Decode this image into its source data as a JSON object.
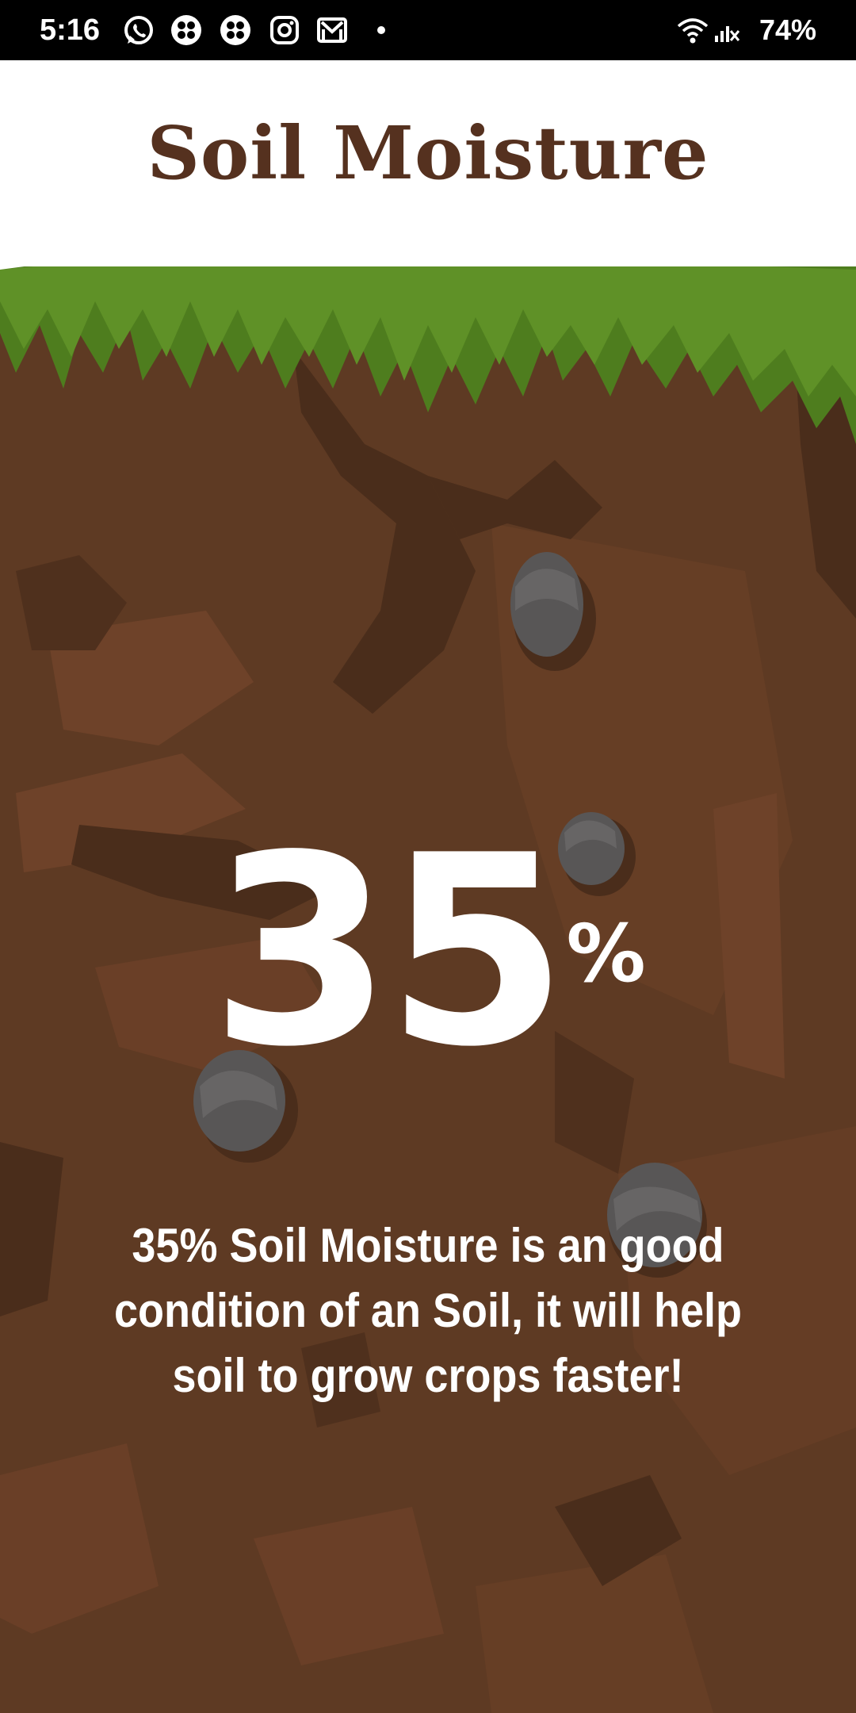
{
  "status_bar": {
    "time": "5:16",
    "battery": "74%",
    "icons": [
      "whatsapp-icon",
      "clover-app-icon",
      "clover-app-icon",
      "instagram-icon",
      "gmail-icon",
      "notification-dot-icon",
      "wifi-icon",
      "no-signal-icon"
    ]
  },
  "header": {
    "title": "Soil Moisture"
  },
  "moisture": {
    "value": "35",
    "unit": "%",
    "message": "35% Soil Moisture is an good condition of an Soil, it will help soil to grow crops faster!"
  },
  "colors": {
    "title": "#55311f",
    "grass": "#4e7d1e",
    "grass_light": "#5f9127",
    "soil": "#5e3a23",
    "soil_dark": "#4a2d1b",
    "soil_light": "#6e4229",
    "rock": "#585656"
  }
}
